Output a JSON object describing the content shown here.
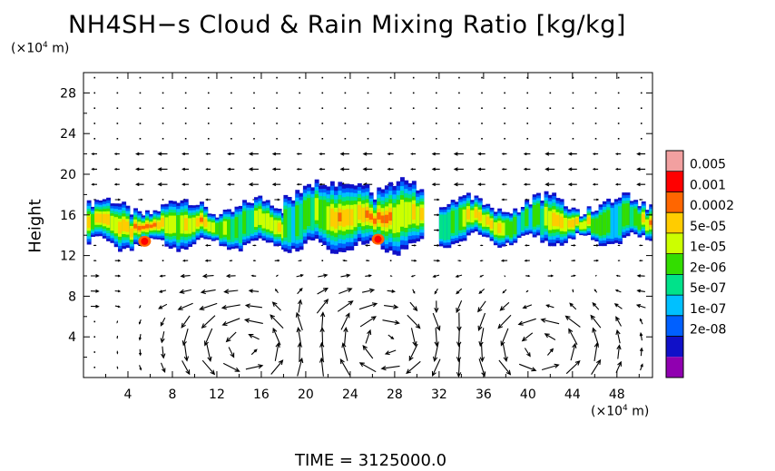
{
  "title": "NH4SH−s Cloud & Rain Mixing Ratio [kg/kg]",
  "y_unit": {
    "prefix": "(×10",
    "exp": "4",
    "suffix": " m)"
  },
  "x_unit": {
    "prefix": "(×10",
    "exp": "4",
    "suffix": " m)"
  },
  "time_label": "TIME  =  3125000.0",
  "chart_data": {
    "type": "heatmap",
    "title": "NH4SH−s Cloud & Rain Mixing Ratio [kg/kg]",
    "xlabel": "",
    "ylabel": "Height",
    "x_ticks": [
      "4",
      "8",
      "12",
      "16",
      "20",
      "24",
      "28",
      "32",
      "36",
      "40",
      "44",
      "48"
    ],
    "y_ticks": [
      "4",
      "8",
      "12",
      "16",
      "20",
      "24",
      "28"
    ],
    "xlim": [
      0,
      51.2
    ],
    "ylim": [
      0,
      30
    ],
    "grid": false,
    "colorbar": {
      "labels": [
        "0.005",
        "0.001",
        "0.0002",
        "5e-05",
        "1e-05",
        "2e-06",
        "5e-07",
        "1e-07",
        "2e-08"
      ],
      "colors": [
        "#f2a0a0",
        "#ff0000",
        "#ff6600",
        "#ffcc00",
        "#ccff00",
        "#33dd00",
        "#00e28a",
        "#00c0ff",
        "#0060ff",
        "#1010c8",
        "#9000b0"
      ]
    },
    "cloud_layer": {
      "description_range_y": [
        12.5,
        19.5
      ],
      "regions": [
        {
          "x0": 0.3,
          "x1": 18,
          "bottom": 12.8,
          "top": 17.5
        },
        {
          "x0": 18,
          "x1": 30.5,
          "bottom": 12.5,
          "top": 19.2
        },
        {
          "x0": 32,
          "x1": 51.2,
          "bottom": 13.2,
          "top": 17.8
        }
      ],
      "peaks": [
        {
          "x": 5.5,
          "y": 13.4,
          "level": "0.001"
        },
        {
          "x": 26.5,
          "y": 13.6,
          "level": "0.001"
        }
      ]
    },
    "wind_field": {
      "vortices": [
        {
          "x": 15,
          "y": 3,
          "direction": "counterclockwise"
        },
        {
          "x": 27,
          "y": 3.5,
          "direction": "clockwise"
        },
        {
          "x": 41,
          "y": 3,
          "direction": "counterclockwise"
        }
      ]
    }
  }
}
